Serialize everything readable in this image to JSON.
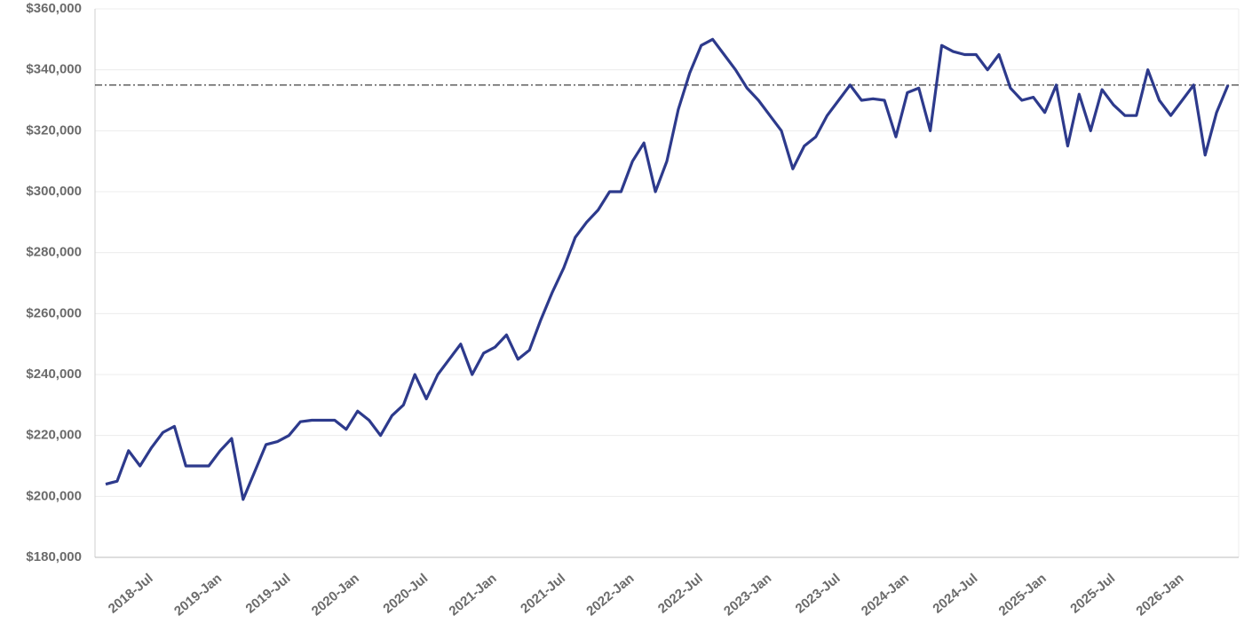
{
  "chart_data": {
    "type": "line",
    "categories": [
      null,
      null,
      null,
      null,
      "2018-Jul",
      null,
      null,
      null,
      null,
      null,
      "2019-Jan",
      null,
      null,
      null,
      null,
      null,
      "2019-Jul",
      null,
      null,
      null,
      null,
      null,
      "2020-Jan",
      null,
      null,
      null,
      null,
      null,
      "2020-Jul",
      null,
      null,
      null,
      null,
      null,
      "2021-Jan",
      null,
      null,
      null,
      null,
      null,
      "2021-Jul",
      null,
      null,
      null,
      null,
      null,
      "2022-Jan",
      null,
      null,
      null,
      null,
      null,
      "2022-Jul",
      null,
      null,
      null,
      null,
      null,
      "2023-Jan",
      null,
      null,
      null,
      null,
      null,
      "2023-Jul",
      null,
      null,
      null,
      null,
      null,
      "2024-Jan",
      null,
      null,
      null,
      null,
      null,
      "2024-Jul",
      null,
      null,
      null,
      null,
      null,
      "2025-Jan",
      null,
      null,
      null,
      null,
      null,
      "2025-Jul",
      null,
      null,
      null,
      null,
      null,
      "2026-Jan",
      null,
      null,
      null,
      null
    ],
    "series": [
      {
        "color": "#2d3a8c",
        "values": [
          204000,
          205000,
          215000,
          210000,
          216000,
          221000,
          223000,
          210000,
          210000,
          210000,
          215000,
          219000,
          199000,
          208000,
          217000,
          218000,
          220000,
          224500,
          225000,
          225000,
          225000,
          222000,
          228000,
          225000,
          220000,
          226500,
          230000,
          240000,
          232000,
          240000,
          245000,
          250000,
          240000,
          247000,
          249000,
          253000,
          245000,
          248000,
          258000,
          267000,
          275000,
          285000,
          290000,
          294000,
          300000,
          300000,
          310000,
          316000,
          300000,
          310000,
          327000,
          339000,
          348000,
          350000,
          345000,
          340000,
          334000,
          330000,
          325000,
          320000,
          307500,
          315000,
          318000,
          325000,
          330000,
          335000,
          330000,
          330500,
          330000,
          318000,
          332500,
          334000,
          320000,
          348000,
          346000,
          345000,
          345000,
          340000,
          345000,
          334000,
          330000,
          331000,
          326000,
          335000,
          315000,
          332000,
          320000,
          333500,
          328500,
          325000,
          325000,
          340000,
          330000,
          325000,
          330000,
          335000,
          312000,
          326000,
          335000
        ]
      }
    ],
    "reference_line": 335000,
    "ylim": [
      180000,
      360000
    ],
    "yticks": [
      {
        "value": 180000,
        "label": "$180,000"
      },
      {
        "value": 200000,
        "label": "$200,000"
      },
      {
        "value": 220000,
        "label": "$220,000"
      },
      {
        "value": 240000,
        "label": "$240,000"
      },
      {
        "value": 260000,
        "label": "$260,000"
      },
      {
        "value": 280000,
        "label": "$280,000"
      },
      {
        "value": 300000,
        "label": "$300,000"
      },
      {
        "value": 320000,
        "label": "$320,000"
      },
      {
        "value": 340000,
        "label": "$340,000"
      },
      {
        "value": 360000,
        "label": "$360,000"
      }
    ],
    "grid": true
  }
}
